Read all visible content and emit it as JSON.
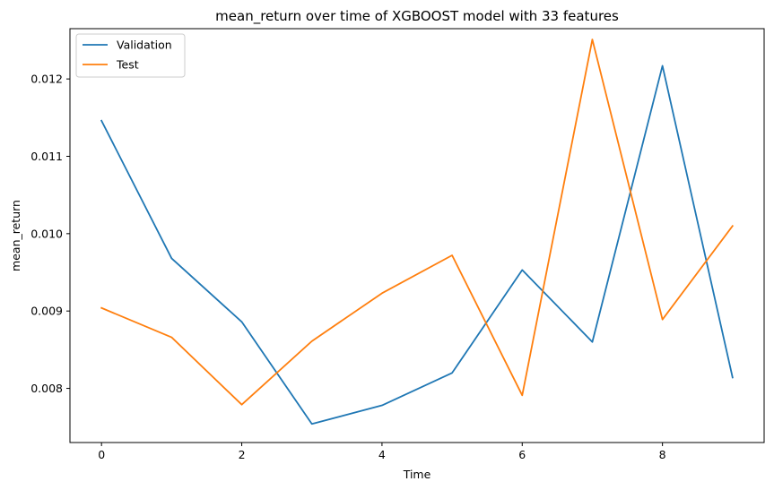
{
  "chart_data": {
    "type": "line",
    "title": "mean_return over time of XGBOOST model with 33 features",
    "xlabel": "Time",
    "ylabel": "mean_return",
    "x": [
      0,
      1,
      2,
      3,
      4,
      5,
      6,
      7,
      8,
      9
    ],
    "xlim": [
      -0.45,
      9.45
    ],
    "ylim": [
      0.0073,
      0.01265
    ],
    "xticks": [
      0,
      2,
      4,
      6,
      8
    ],
    "xtick_labels": [
      "0",
      "2",
      "4",
      "6",
      "8"
    ],
    "yticks": [
      0.008,
      0.009,
      0.01,
      0.011,
      0.012
    ],
    "ytick_labels": [
      "0.008",
      "0.009",
      "0.010",
      "0.011",
      "0.012"
    ],
    "grid": false,
    "legend_position": "top-left",
    "series": [
      {
        "name": "Validation",
        "color": "#1f77b4",
        "values": [
          0.01146,
          0.00968,
          0.00886,
          0.00754,
          0.00778,
          0.0082,
          0.00953,
          0.0086,
          0.01217,
          0.00814
        ]
      },
      {
        "name": "Test",
        "color": "#ff7f0e",
        "values": [
          0.00904,
          0.00866,
          0.00779,
          0.00861,
          0.00923,
          0.00972,
          0.00791,
          0.01251,
          0.00889,
          0.0101
        ]
      }
    ]
  }
}
